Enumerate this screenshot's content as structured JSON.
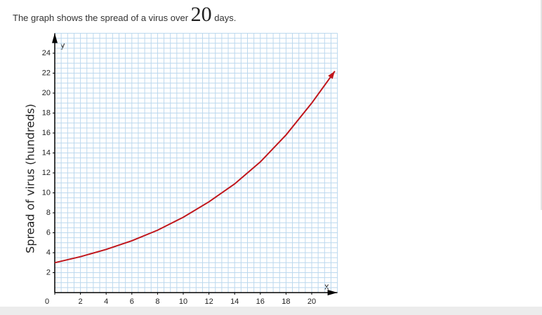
{
  "prompt": {
    "before": "The graph shows the spread of a virus over",
    "number": "20",
    "after": "days."
  },
  "chart_data": {
    "type": "line",
    "x_label": "x",
    "y_label": "y",
    "y_title": "Spread of virus (hundreds)",
    "x": [
      0,
      2,
      4,
      6,
      8,
      10,
      12,
      14,
      16,
      18,
      20,
      21.8
    ],
    "series": [
      {
        "color": "#c0161c",
        "values": [
          3,
          3.6,
          4.33,
          5.2,
          6.25,
          7.55,
          9.1,
          10.9,
          13.1,
          15.8,
          19.0,
          22.2
        ]
      }
    ],
    "xlim": [
      0,
      22
    ],
    "ylim": [
      0,
      26
    ],
    "xticks": [
      0,
      2,
      4,
      6,
      8,
      10,
      12,
      14,
      16,
      18,
      20
    ],
    "yticks": [
      2,
      4,
      6,
      8,
      10,
      12,
      14,
      16,
      18,
      20,
      22,
      24
    ],
    "grid": true,
    "grid_step": 0.5,
    "grid_color": "#bcd8ee"
  }
}
